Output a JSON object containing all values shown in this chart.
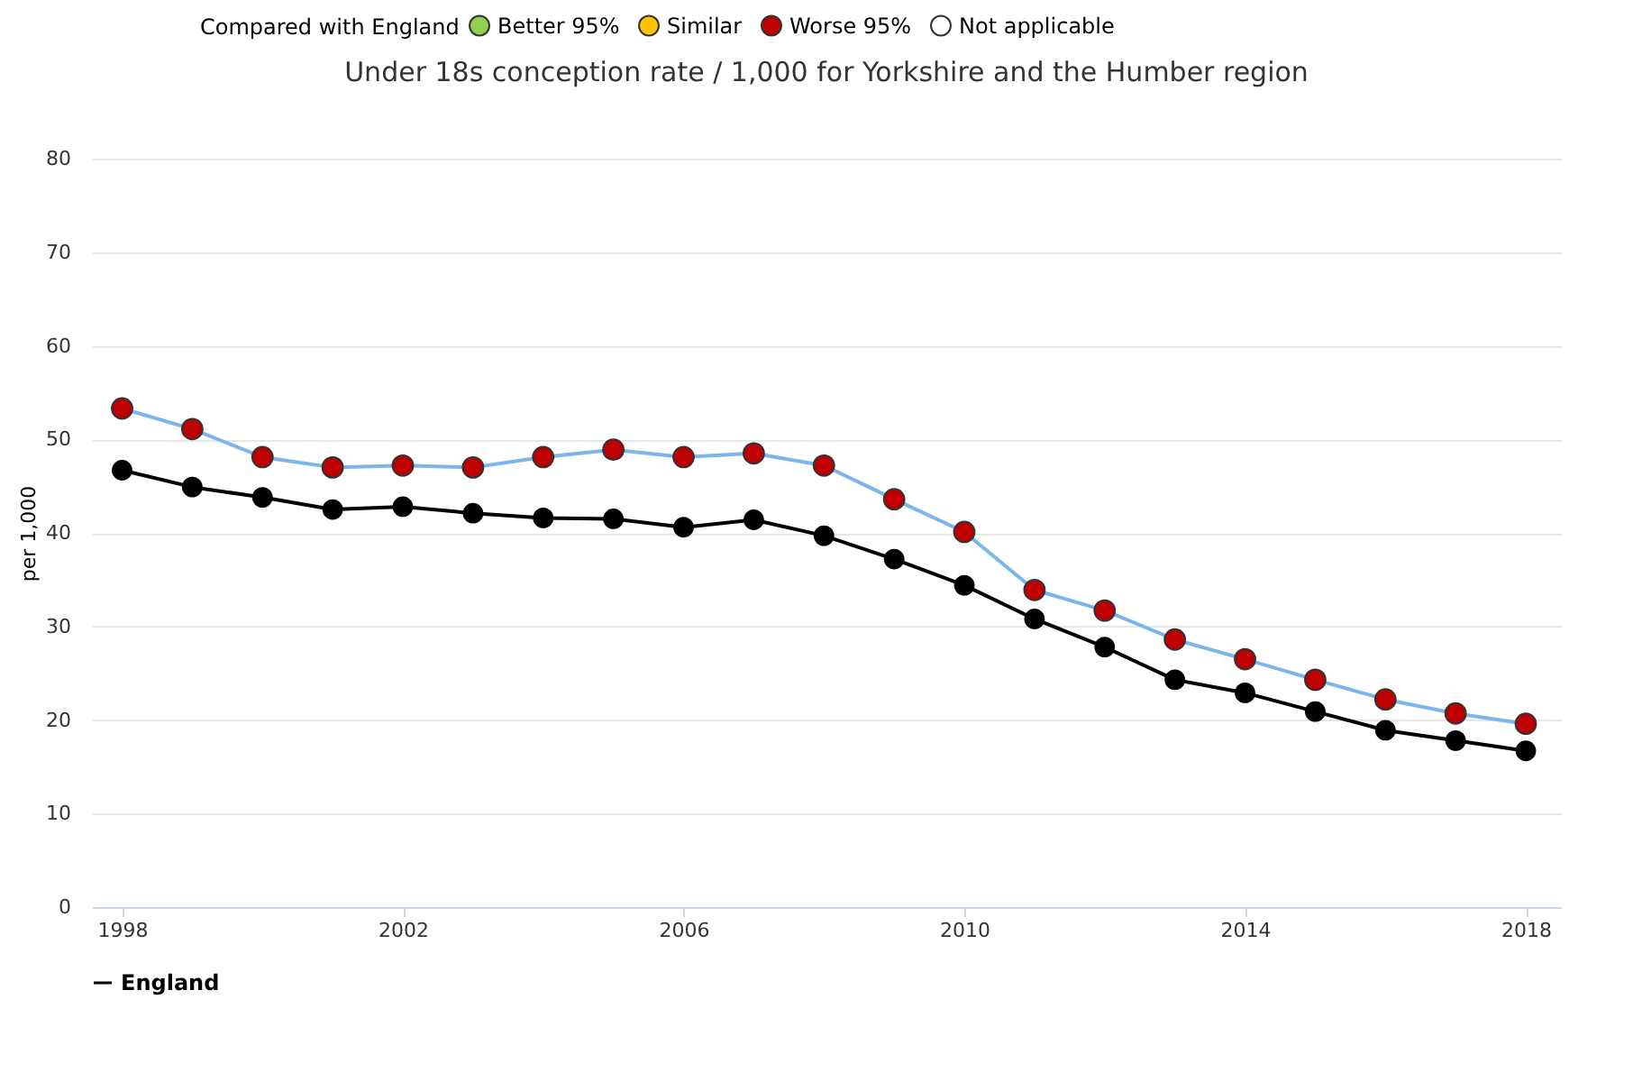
{
  "chart_data": {
    "type": "line",
    "title": "Under 18s conception rate / 1,000 for Yorkshire and the Humber region",
    "ylabel": "per 1,000",
    "legend_title": "Compared with England",
    "x": [
      1998,
      1999,
      2000,
      2001,
      2002,
      2003,
      2004,
      2005,
      2006,
      2007,
      2008,
      2009,
      2010,
      2011,
      2012,
      2013,
      2014,
      2015,
      2016,
      2017,
      2018
    ],
    "series": [
      {
        "color": "#7cb5ec",
        "colors": [
          "#c00000",
          "#c00000",
          "#c00000",
          "#c00000",
          "#c00000",
          "#c00000",
          "#c00000",
          "#c00000",
          "#c00000",
          "#c00000",
          "#c00000",
          "#c00000",
          "#c00000",
          "#c00000",
          "#c00000",
          "#c00000",
          "#c00000",
          "#c00000",
          "#c00000",
          "#c00000",
          "#c00000"
        ],
        "values": [
          53.3,
          51.1,
          48.1,
          47.0,
          47.2,
          47.0,
          48.1,
          48.9,
          48.1,
          48.5,
          47.2,
          43.6,
          40.1,
          33.9,
          31.7,
          28.6,
          26.5,
          24.3,
          22.2,
          20.7,
          19.6
        ]
      },
      {
        "name": "England",
        "color": "#000000",
        "values": [
          46.7,
          44.9,
          43.8,
          42.5,
          42.8,
          42.1,
          41.6,
          41.5,
          40.6,
          41.4,
          39.7,
          37.2,
          34.4,
          30.8,
          27.8,
          24.3,
          22.9,
          20.9,
          18.9,
          17.8,
          16.7
        ]
      },
      {
        "name": "Better 95%",
        "color": "#92d050",
        "values": [
          null,
          null,
          null,
          null,
          null,
          null,
          null,
          null,
          null,
          null,
          null,
          null,
          null,
          null,
          null,
          null,
          null,
          null,
          null,
          null,
          null
        ]
      },
      {
        "name": "Similar",
        "color": "#ffc000",
        "values": [
          null,
          null,
          null,
          null,
          null,
          null,
          null,
          null,
          null,
          null,
          null,
          null,
          null,
          null,
          null,
          null,
          null,
          null,
          null,
          null,
          null
        ]
      },
      {
        "name": "Worse 95%",
        "color": "#c00000",
        "values": [
          null,
          null,
          null,
          null,
          null,
          null,
          null,
          null,
          null,
          null,
          null,
          null,
          null,
          null,
          null,
          null,
          null,
          null,
          null,
          null,
          null
        ]
      },
      {
        "name": "Not applicable",
        "color": "#ffffff",
        "values": [
          null,
          null,
          null,
          null,
          null,
          null,
          null,
          null,
          null,
          null,
          null,
          null,
          null,
          null,
          null,
          null,
          null,
          null,
          null,
          null,
          null
        ]
      }
    ],
    "xlim": [
      1997.57,
      2018.5
    ],
    "xticks": [
      1998,
      2002,
      2006,
      2010,
      2014,
      2018
    ],
    "ylim": [
      0,
      80
    ],
    "yticks": [
      0,
      10,
      20,
      30,
      40,
      50,
      60,
      70,
      80
    ],
    "grid": "y",
    "legend": "top",
    "marker": "circle",
    "line_style": "solid"
  }
}
